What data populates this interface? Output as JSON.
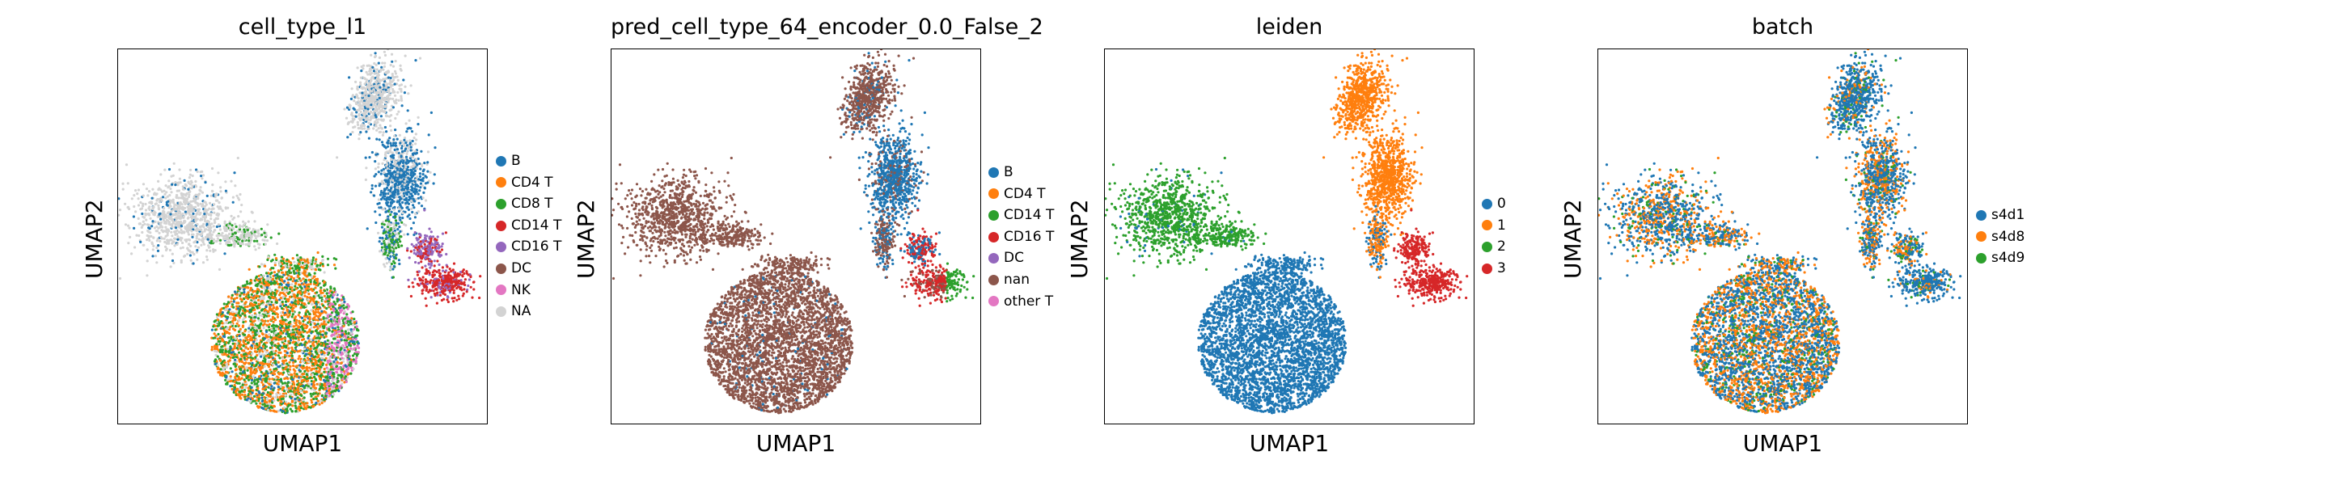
{
  "chart_data": [
    {
      "type": "scatter",
      "title": "cell_type_l1",
      "xlabel": "UMAP1",
      "ylabel": "UMAP2",
      "legend_position": "right",
      "grid": false,
      "series": [
        {
          "name": "B",
          "color": "#1f77b4"
        },
        {
          "name": "CD4 T",
          "color": "#ff7f0e"
        },
        {
          "name": "CD8 T",
          "color": "#2ca02c"
        },
        {
          "name": "CD14 T",
          "color": "#d62728"
        },
        {
          "name": "CD16 T",
          "color": "#9467bd"
        },
        {
          "name": "DC",
          "color": "#8c564b"
        },
        {
          "name": "NK",
          "color": "#e377c2"
        },
        {
          "name": "NA",
          "color": "#d3d3d3"
        }
      ]
    },
    {
      "type": "scatter",
      "title": "pred_cell_type_64_encoder_0.0_False_2",
      "xlabel": "UMAP1",
      "ylabel": "UMAP2",
      "legend_position": "right",
      "grid": false,
      "series": [
        {
          "name": "B",
          "color": "#1f77b4"
        },
        {
          "name": "CD4 T",
          "color": "#ff7f0e"
        },
        {
          "name": "CD14 T",
          "color": "#2ca02c"
        },
        {
          "name": "CD16 T",
          "color": "#d62728"
        },
        {
          "name": "DC",
          "color": "#9467bd"
        },
        {
          "name": "nan",
          "color": "#8c564b"
        },
        {
          "name": "other T",
          "color": "#e377c2"
        }
      ]
    },
    {
      "type": "scatter",
      "title": "leiden",
      "xlabel": "UMAP1",
      "ylabel": "UMAP2",
      "legend_position": "right",
      "grid": false,
      "series": [
        {
          "name": "0",
          "color": "#1f77b4"
        },
        {
          "name": "1",
          "color": "#ff7f0e"
        },
        {
          "name": "2",
          "color": "#2ca02c"
        },
        {
          "name": "3",
          "color": "#d62728"
        }
      ]
    },
    {
      "type": "scatter",
      "title": "batch",
      "xlabel": "UMAP1",
      "ylabel": "UMAP2",
      "legend_position": "right",
      "grid": false,
      "series": [
        {
          "name": "s4d1",
          "color": "#1f77b4"
        },
        {
          "name": "s4d8",
          "color": "#ff7f0e"
        },
        {
          "name": "s4d9",
          "color": "#2ca02c"
        }
      ]
    }
  ]
}
